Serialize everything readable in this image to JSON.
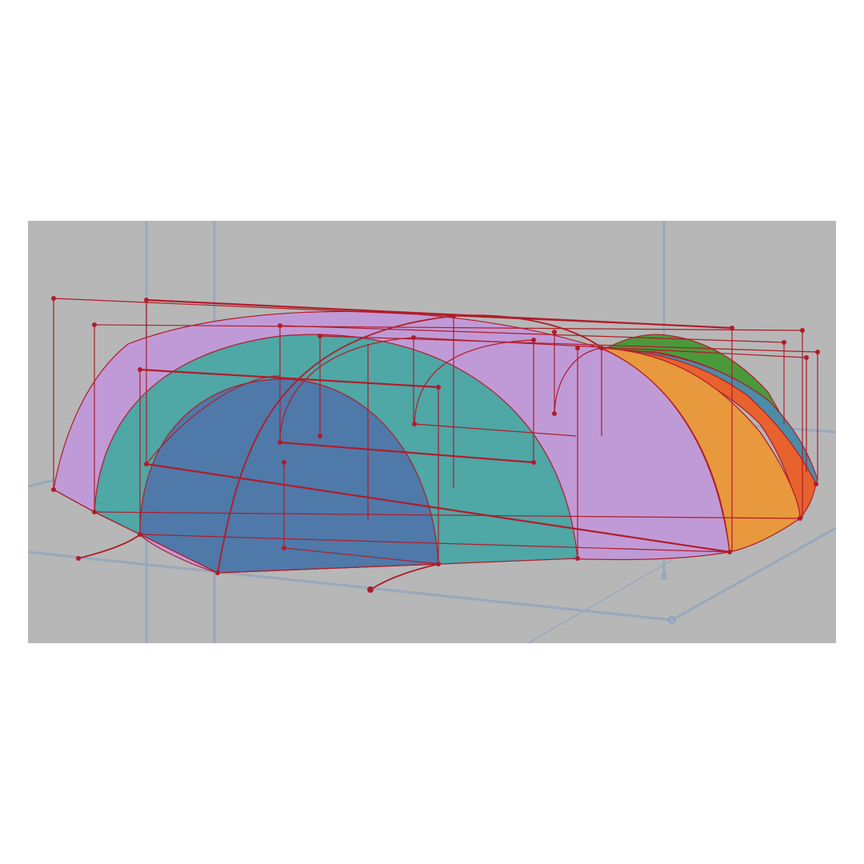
{
  "viewport": {
    "background": "#b7b7b7",
    "grid_color": "#8ea3bd",
    "control_color": "#b01c2a"
  },
  "surfaces": [
    {
      "name": "lavender-outer-shell",
      "color": "#c09ad6"
    },
    {
      "name": "teal-middle-shell",
      "color": "#4fa7a6"
    },
    {
      "name": "blue-inner-shell",
      "color": "#4f79a9"
    },
    {
      "name": "orange-shell",
      "color": "#e8983d"
    },
    {
      "name": "red-orange-shell",
      "color": "#e8622e"
    },
    {
      "name": "steel-blue-shell",
      "color": "#4b8ca6"
    },
    {
      "name": "green-shell",
      "color": "#4a9a3c"
    }
  ]
}
